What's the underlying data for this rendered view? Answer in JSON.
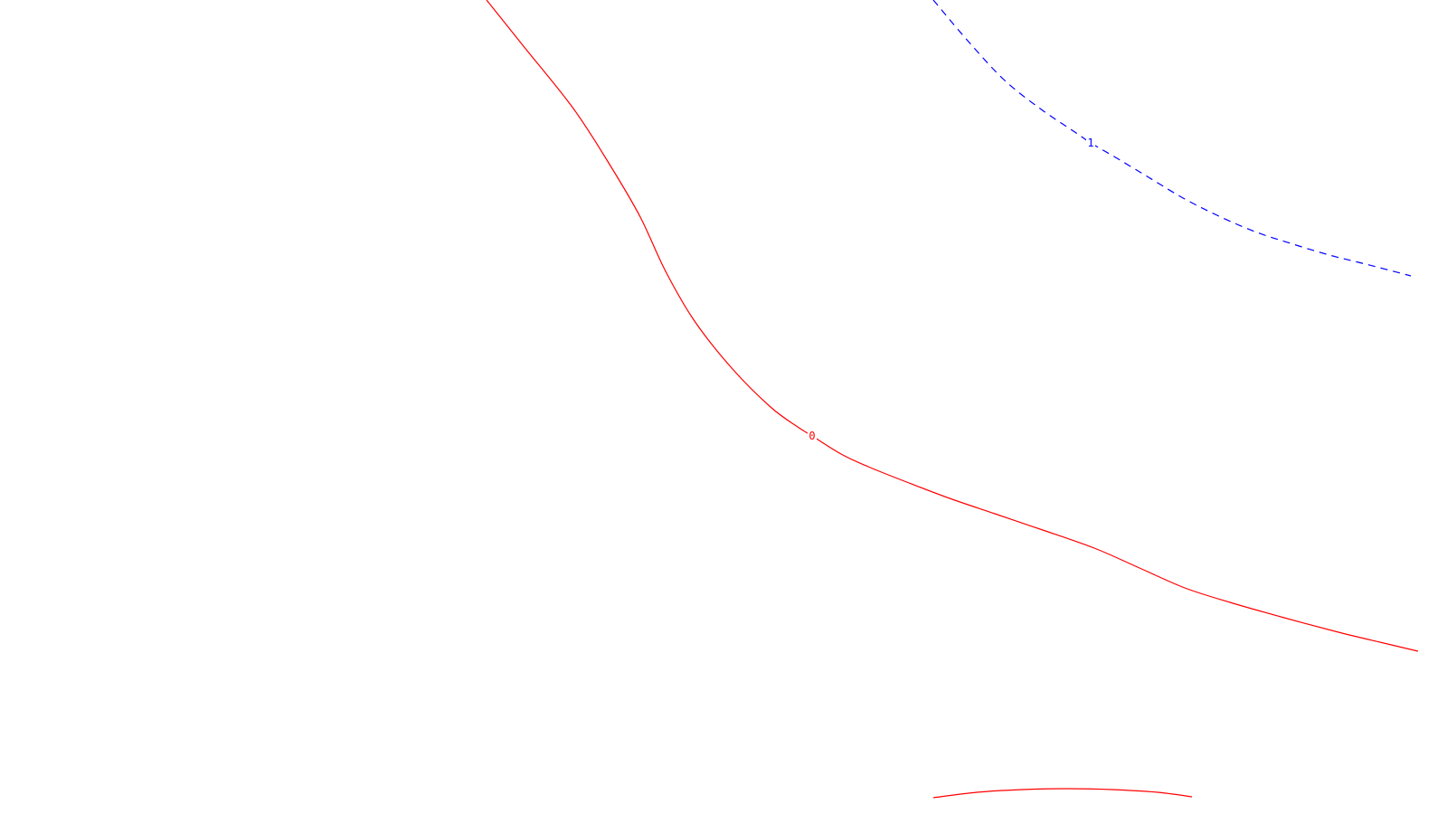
{
  "chart_data": {
    "type": "contour",
    "title": "",
    "xlabel": "",
    "ylabel": "",
    "grid": false,
    "legend": "none",
    "series": [
      {
        "level": "0",
        "color": "#ff0000",
        "line_style": "solid",
        "segments": [
          {
            "label": "0",
            "x": [
              538,
              578,
              634,
              676,
              708,
              736,
              768,
              810,
              852,
              882,
              898,
              930,
              960,
              1000,
              1050,
              1100,
              1150,
              1210,
              1260,
              1310,
              1360,
              1420,
              1480,
              1530,
              1568
            ],
            "y": [
              0,
              50,
              120,
              185,
              240,
              300,
              355,
              408,
              450,
              472,
              482,
              502,
              516,
              532,
              551,
              568,
              585,
              606,
              628,
              650,
              666,
              683,
              699,
              711,
              720
            ]
          },
          {
            "label": "",
            "x": [
              1032,
              1080,
              1130,
              1180,
              1230,
              1280,
              1318
            ],
            "y": [
              882,
              876,
              873,
              872,
              873,
              876,
              881
            ]
          }
        ]
      },
      {
        "level": "1",
        "color": "#0000ff",
        "line_style": "dashed",
        "segments": [
          {
            "label": "1",
            "x": [
              1032,
              1070,
              1110,
              1150,
              1190,
              1206,
              1230,
              1270,
              1310,
              1350,
              1390,
              1430,
              1470,
              1510,
              1560
            ],
            "y": [
              0,
              45,
              88,
              120,
              147,
              158,
              172,
              196,
              220,
              240,
              257,
              270,
              282,
              292,
              305
            ]
          }
        ]
      }
    ]
  }
}
